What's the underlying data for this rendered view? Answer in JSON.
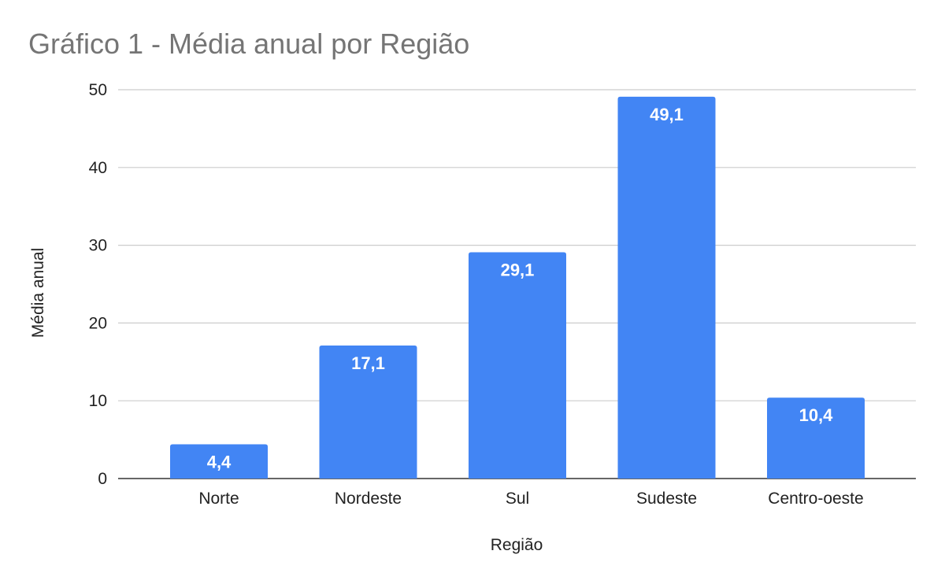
{
  "chart_data": {
    "type": "bar",
    "title": "Gráfico 1 - Média anual por Região",
    "xlabel": "Região",
    "ylabel": "Média anual",
    "categories": [
      "Norte",
      "Nordeste",
      "Sul",
      "Sudeste",
      "Centro-oeste"
    ],
    "values": [
      4.4,
      17.1,
      29.1,
      49.1,
      10.4
    ],
    "data_labels": [
      "4,4",
      "17,1",
      "29,1",
      "49,1",
      "10,4"
    ],
    "ylim": [
      0,
      50
    ],
    "yticks": [
      "0",
      "10",
      "20",
      "30",
      "40",
      "50"
    ],
    "ytick_values": [
      0,
      10,
      20,
      30,
      40,
      50
    ],
    "grid": true,
    "legend": "none",
    "colors": {
      "bar": "#4285f4",
      "gridline": "#cccccc",
      "baseline": "#333333",
      "title": "#757575",
      "text": "#222222",
      "data_label": "#ffffff"
    }
  }
}
